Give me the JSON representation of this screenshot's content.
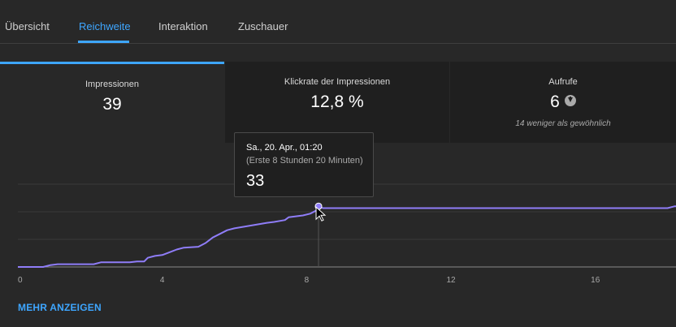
{
  "tabs": [
    {
      "label": "Übersicht",
      "active": false
    },
    {
      "label": "Reichweite",
      "active": true
    },
    {
      "label": "Interaktion",
      "active": false
    },
    {
      "label": "Zuschauer",
      "active": false
    }
  ],
  "cards": [
    {
      "label": "Impressionen",
      "value": "39",
      "sub": ""
    },
    {
      "label": "Klickrate der Impressionen",
      "value": "12,8 %",
      "sub": ""
    },
    {
      "label": "Aufrufe",
      "value": "6",
      "sub": "14 weniger als gewöhnlich",
      "icon": "arrow-down-circle-icon"
    }
  ],
  "tooltip": {
    "date": "Sa., 20. Apr., 01:20",
    "sub": "(Erste 8 Stunden 20 Minuten)",
    "value": "33"
  },
  "more_link": "MEHR ANZEIGEN",
  "colors": {
    "accent": "#3ea6ff",
    "line": "#8f7df8",
    "background": "#282828",
    "card": "#1f1f1f"
  },
  "chart_data": {
    "type": "line",
    "x_ticks": [
      "0",
      "4",
      "8",
      "12",
      "16"
    ],
    "xlim": [
      0,
      19
    ],
    "ylim": [
      0,
      45
    ],
    "grid": true,
    "series": [
      {
        "points": [
          [
            0,
            0
          ],
          [
            0.7,
            0
          ],
          [
            0.9,
            1
          ],
          [
            1.1,
            1.5
          ],
          [
            2.1,
            1.5
          ],
          [
            2.3,
            2.5
          ],
          [
            3.1,
            2.5
          ],
          [
            3.3,
            3
          ],
          [
            3.5,
            3
          ],
          [
            3.6,
            5
          ],
          [
            3.8,
            6
          ],
          [
            4.0,
            6.5
          ],
          [
            4.2,
            8
          ],
          [
            4.4,
            9.5
          ],
          [
            4.6,
            10.5
          ],
          [
            5.0,
            11
          ],
          [
            5.2,
            13
          ],
          [
            5.4,
            16
          ],
          [
            5.6,
            18
          ],
          [
            5.8,
            20
          ],
          [
            6.0,
            21
          ],
          [
            6.3,
            22
          ],
          [
            6.6,
            23
          ],
          [
            6.9,
            24
          ],
          [
            7.1,
            24.5
          ],
          [
            7.4,
            25.5
          ],
          [
            7.5,
            27
          ],
          [
            7.9,
            28
          ],
          [
            8.1,
            29
          ],
          [
            8.3,
            31
          ],
          [
            8.33,
            33
          ],
          [
            8.45,
            32
          ],
          [
            9.0,
            32
          ],
          [
            12.0,
            32
          ],
          [
            15.0,
            32
          ],
          [
            18.0,
            32
          ],
          [
            18.2,
            33
          ],
          [
            19,
            33
          ]
        ]
      }
    ],
    "highlight_x": 8.33,
    "highlight_y": 33
  }
}
